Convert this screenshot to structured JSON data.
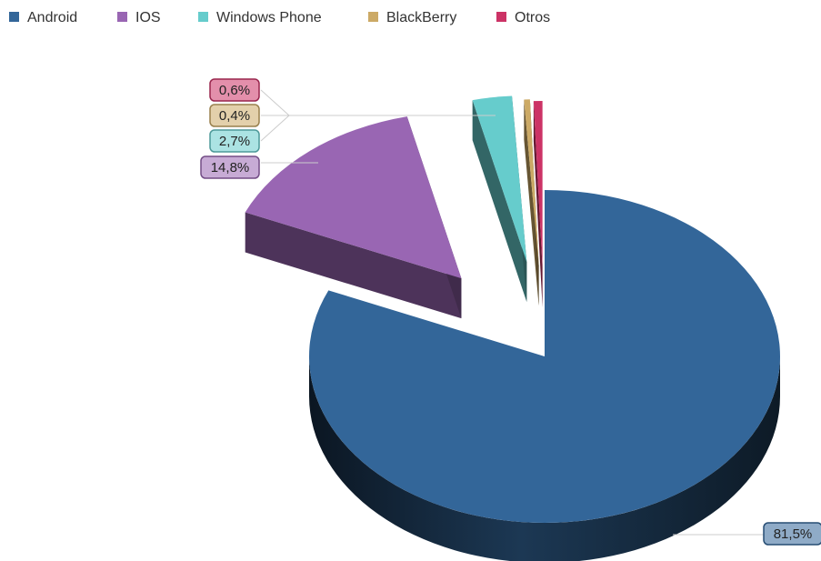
{
  "chart_data": {
    "type": "pie",
    "categories": [
      "Android",
      "IOS",
      "Windows Phone",
      "BlackBerry",
      "Otros"
    ],
    "values": [
      81.5,
      14.8,
      2.7,
      0.4,
      0.6
    ],
    "data_labels": [
      "81,5%",
      "14,8%",
      "2,7%",
      "0,4%",
      "0,6%"
    ],
    "colors": [
      "#336699",
      "#9966b3",
      "#66cccc",
      "#ccaa66",
      "#cc3366"
    ],
    "legend_position": "top-left",
    "style": "3d-exploded"
  }
}
